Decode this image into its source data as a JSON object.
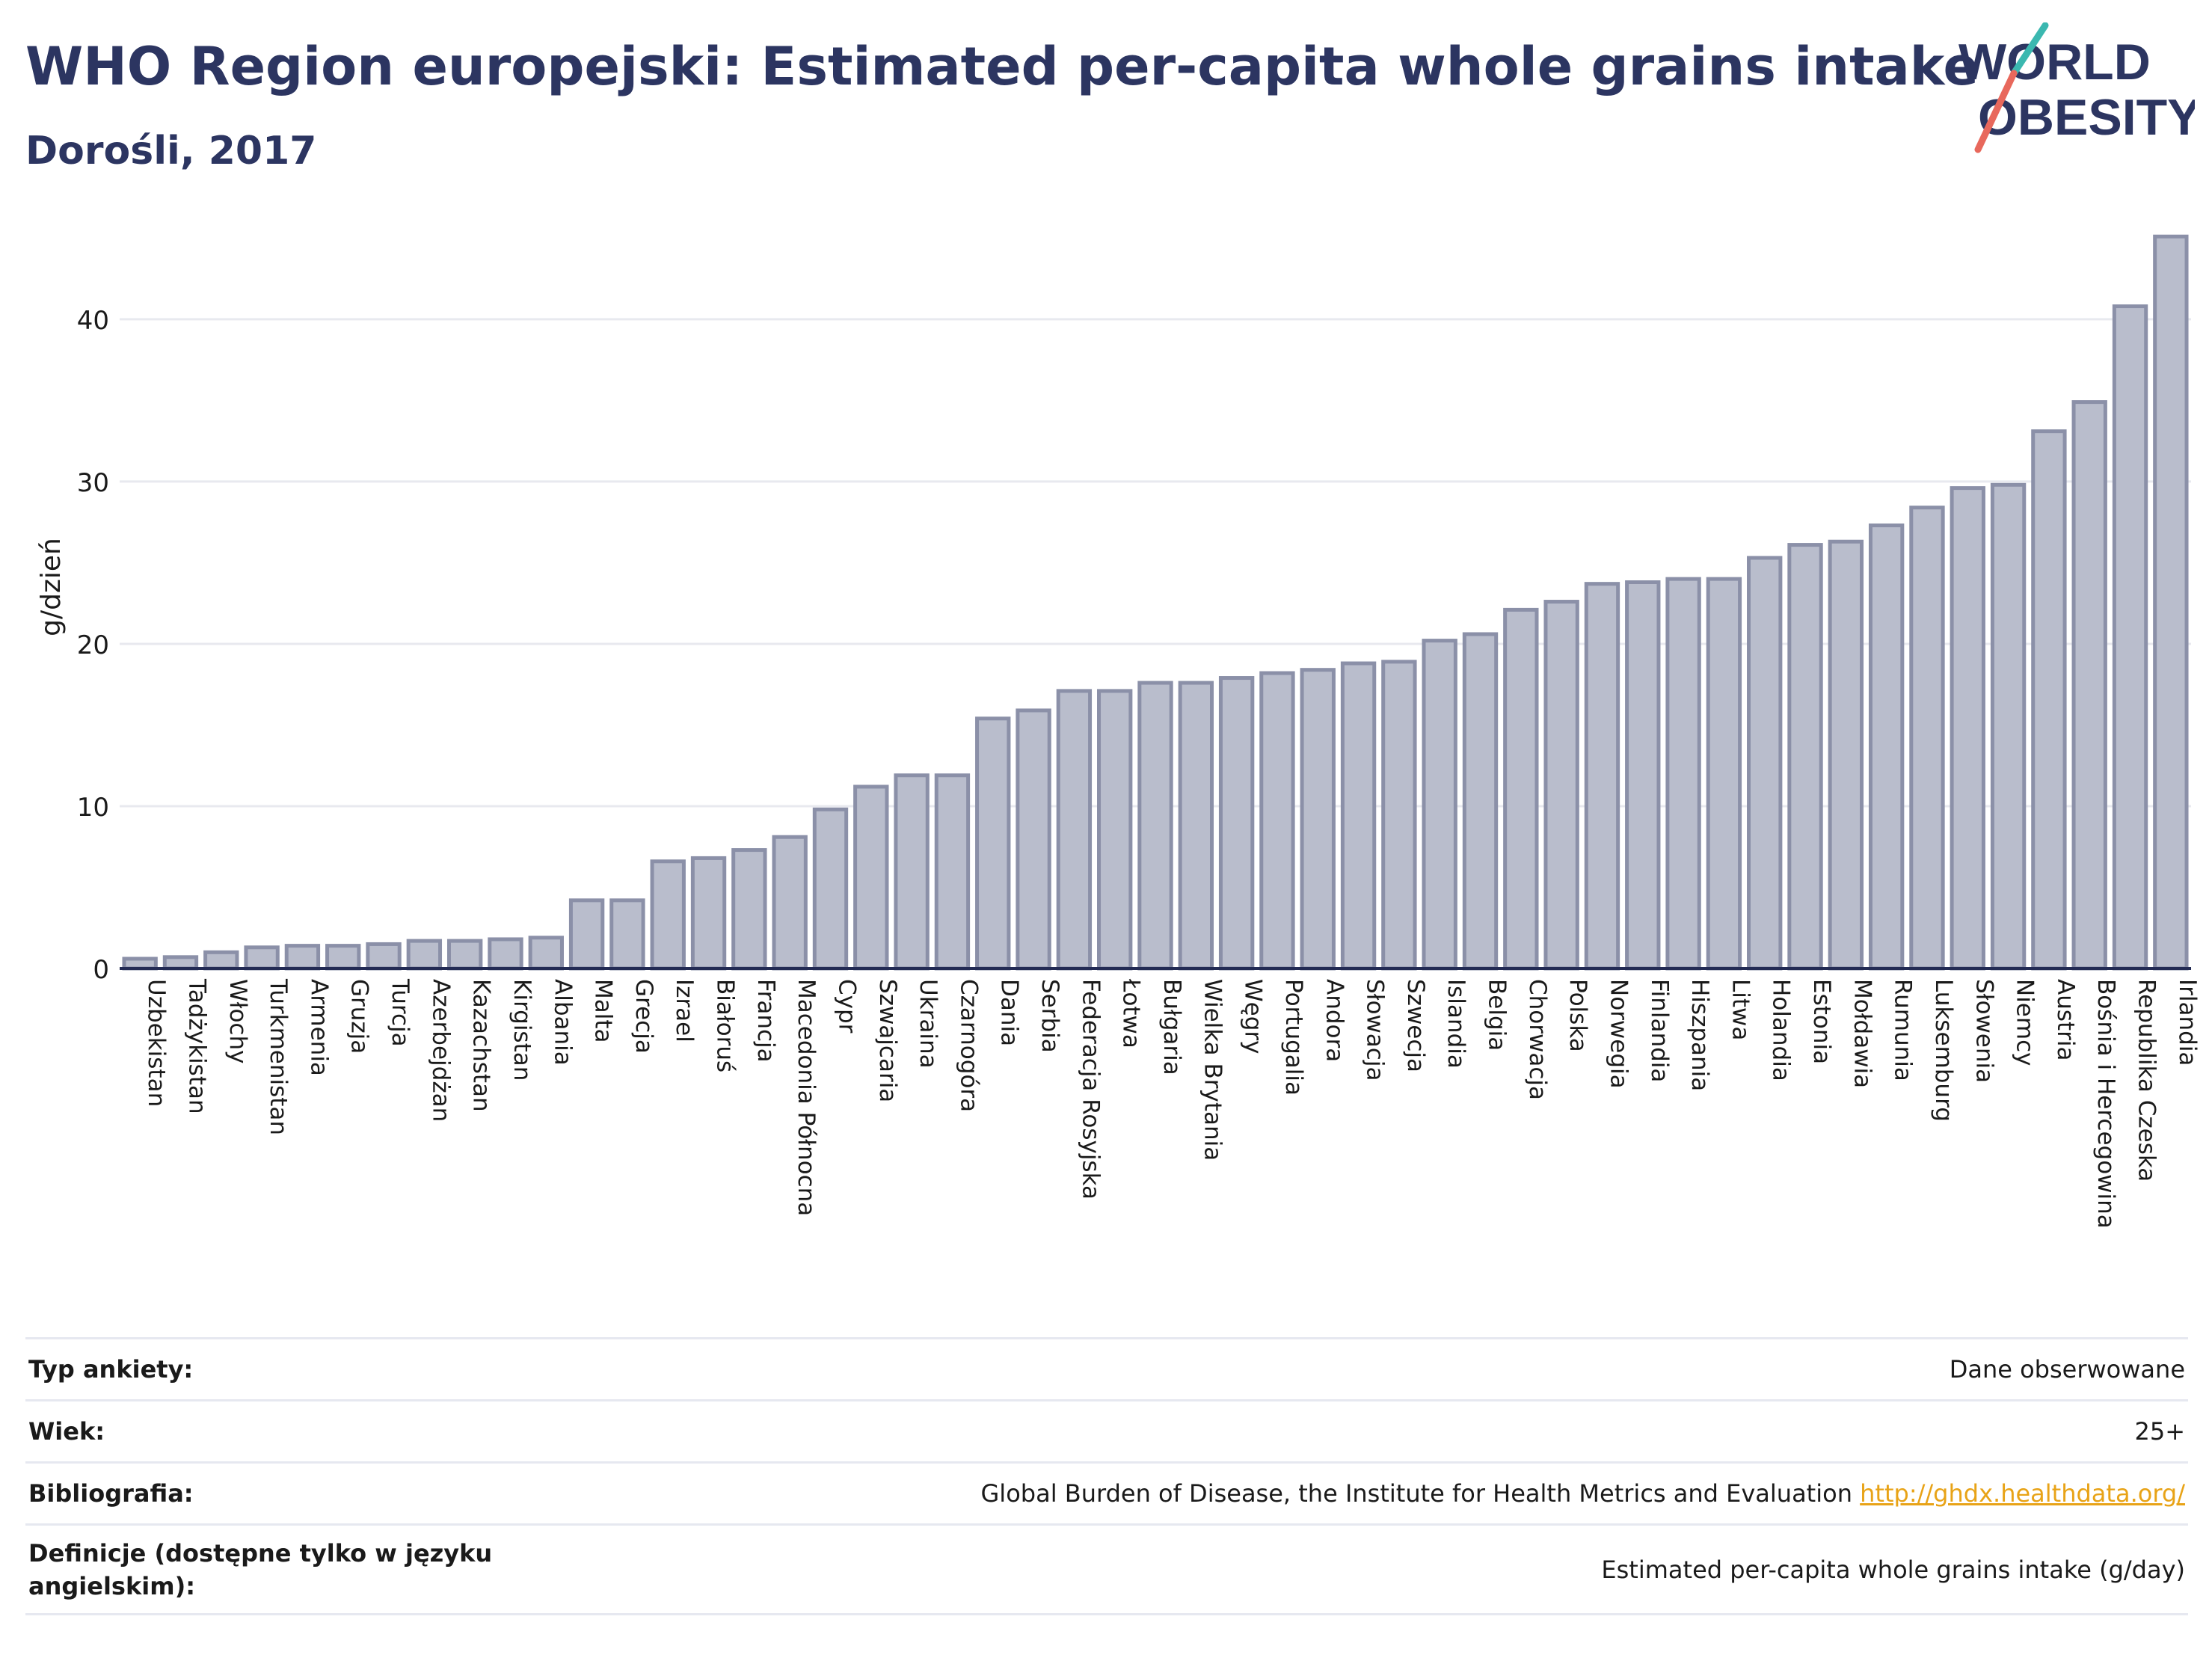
{
  "header": {
    "title": "WHO Region europejski: Estimated per-capita whole grains intake",
    "subtitle": "Dorośli, 2017"
  },
  "logo": {
    "line1": "WORLD",
    "line2": "OBESITY",
    "colors": {
      "text": "#2c3561",
      "slash_teal": "#3bb8b0",
      "slash_coral": "#e8685c"
    }
  },
  "chart_data": {
    "type": "bar",
    "ylabel": "g/dzień",
    "xlabel": "",
    "ylim": [
      0,
      47
    ],
    "yticks": [
      0,
      10,
      20,
      30,
      40
    ],
    "grid": true,
    "bar_color": "#b9bdcc",
    "bar_border_color": "#8b90a8",
    "categories": [
      "Uzbekistan",
      "Tadżykistan",
      "Włochy",
      "Turkmenistan",
      "Armenia",
      "Gruzja",
      "Turcja",
      "Azerbejdżan",
      "Kazachstan",
      "Kirgistan",
      "Albania",
      "Malta",
      "Grecja",
      "Izrael",
      "Białoruś",
      "Francja",
      "Macedonia Północna",
      "Cypr",
      "Szwajcaria",
      "Ukraina",
      "Czarnogóra",
      "Dania",
      "Serbia",
      "Federacja Rosyjska",
      "Łotwa",
      "Bułgaria",
      "Wielka Brytania",
      "Węgry",
      "Portugalia",
      "Andora",
      "Słowacja",
      "Szwecja",
      "Islandia",
      "Belgia",
      "Chorwacja",
      "Polska",
      "Norwegia",
      "Finlandia",
      "Hiszpania",
      "Litwa",
      "Holandia",
      "Estonia",
      "Mołdawia",
      "Rumunia",
      "Luksemburg",
      "Słowenia",
      "Niemcy",
      "Austria",
      "Bośnia i Hercegowina",
      "Republika Czeska",
      "Irlandia"
    ],
    "values": [
      0.6,
      0.7,
      1.0,
      1.3,
      1.4,
      1.4,
      1.5,
      1.7,
      1.7,
      1.8,
      1.9,
      4.2,
      4.2,
      6.6,
      6.8,
      7.3,
      8.1,
      9.8,
      11.2,
      11.9,
      11.9,
      15.4,
      15.9,
      17.1,
      17.1,
      17.6,
      17.6,
      17.9,
      18.2,
      18.4,
      18.8,
      18.9,
      20.2,
      20.6,
      22.1,
      22.6,
      23.7,
      23.8,
      24.0,
      24.0,
      25.3,
      26.1,
      26.3,
      27.3,
      28.4,
      29.6,
      29.8,
      33.1,
      34.9,
      40.8,
      45.1
    ]
  },
  "info": {
    "survey_label": "Typ ankiety:",
    "survey_value": "Dane obserwowane",
    "age_label": "Wiek:",
    "age_value": "25+",
    "ref_label": "Bibliografia:",
    "ref_value": "Global Burden of Disease, the Institute for Health Metrics and Evaluation",
    "ref_link": "http://ghdx.healthdata.org/",
    "def_label": "Definicje (dostępne tylko w języku angielskim):",
    "def_value": "Estimated per-capita whole grains intake (g/day)"
  }
}
